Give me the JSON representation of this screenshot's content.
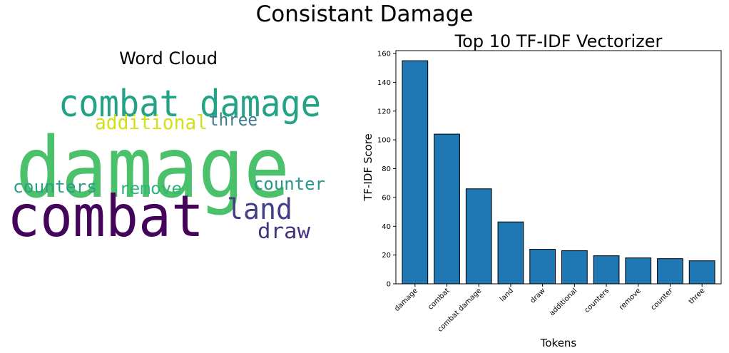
{
  "figure": {
    "title": "Consistant Damage"
  },
  "chart_data": [
    {
      "type": "wordcloud",
      "title": "Word Cloud",
      "words": [
        {
          "text": "damage",
          "color": "#4cc16b"
        },
        {
          "text": "combat damage",
          "color": "#22a386"
        },
        {
          "text": "additional",
          "color": "#d2e11b"
        },
        {
          "text": "three",
          "color": "#3a7c8e"
        },
        {
          "text": "counters",
          "color": "#2aa084"
        },
        {
          "text": "remove",
          "color": "#2fb47c"
        },
        {
          "text": "counter",
          "color": "#26968a"
        },
        {
          "text": "land",
          "color": "#433e85"
        },
        {
          "text": "combat",
          "color": "#44045a"
        },
        {
          "text": "draw",
          "color": "#46337e"
        }
      ]
    },
    {
      "type": "bar",
      "title": "Top 10 TF-IDF Vectorizer",
      "xlabel": "Tokens",
      "ylabel": "TF-IDF Score",
      "categories": [
        "damage",
        "combat",
        "combat damage",
        "land",
        "draw",
        "additional",
        "counters",
        "remove",
        "counter",
        "three"
      ],
      "values": [
        155,
        104,
        66,
        43,
        24,
        23,
        19.5,
        18,
        17.5,
        16
      ],
      "ylim": [
        0,
        162
      ],
      "yticks": [
        0,
        20,
        40,
        60,
        80,
        100,
        120,
        140,
        160
      ],
      "bar_color": "#1f77b4",
      "grid": false
    }
  ]
}
